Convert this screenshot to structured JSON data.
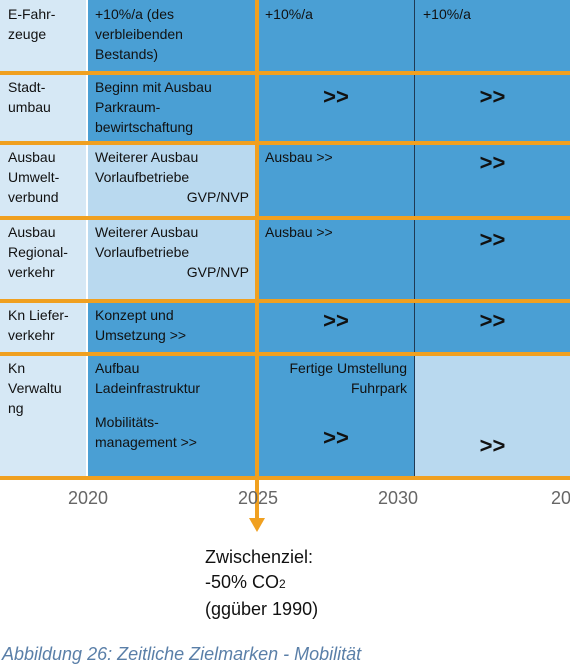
{
  "rows": [
    {
      "label": "E-Fahr-\nzeuge",
      "c1": "+10%/a (des\nverbleibenden\nBestands)",
      "c2": "+10%/a",
      "c3": "+10%/a"
    },
    {
      "label": "Stadt-\numbau",
      "c1": "Beginn mit Ausbau\nParkraum-\nbewirtschaftung",
      "c2": ">>",
      "c3": ">>"
    },
    {
      "label": "Ausbau\nUmwelt-\nverbund",
      "c1_text": "Weiterer Ausbau\nVorlaufbetriebe",
      "c1_right": "GVP/NVP",
      "c2": "Ausbau >>",
      "c3": ">>"
    },
    {
      "label": "Ausbau\nRegional-\nverkehr",
      "c1_text": "Weiterer Ausbau\nVorlaufbetriebe",
      "c1_right": "GVP/NVP",
      "c2": "Ausbau >>",
      "c3": ">>"
    },
    {
      "label": "Kn Liefer-\nverkehr",
      "c1": "Konzept und\nUmsetzung >>",
      "c2": ">>",
      "c3": ">>"
    },
    {
      "label": "Kn\nVerwaltu\nng",
      "c1_top": "Aufbau\nLadeinfrastruktur",
      "c1_bottom": "Mobilitäts-\nmanagement >>",
      "c2_top": "Fertige Umstellung\nFuhrpark",
      "c2_bottom": ">>",
      "c3": ">>"
    }
  ],
  "years": [
    "2020",
    "2025",
    "2030",
    "20"
  ],
  "milestone": {
    "line1": "Zwischenziel:",
    "line2_prefix": "-50% CO",
    "line2_sub": "2",
    "line3": "(ggüber 1990)"
  },
  "caption": "Abbildung 26: Zeitliche Zielmarken - Mobilität",
  "colors": {
    "label_bg": "#d6e8f5",
    "dark_bg": "#4a9fd4",
    "light_bg": "#b9d9ef",
    "orange": "#f0a020",
    "year_text": "#666666",
    "caption_text": "#5a7fa8"
  }
}
